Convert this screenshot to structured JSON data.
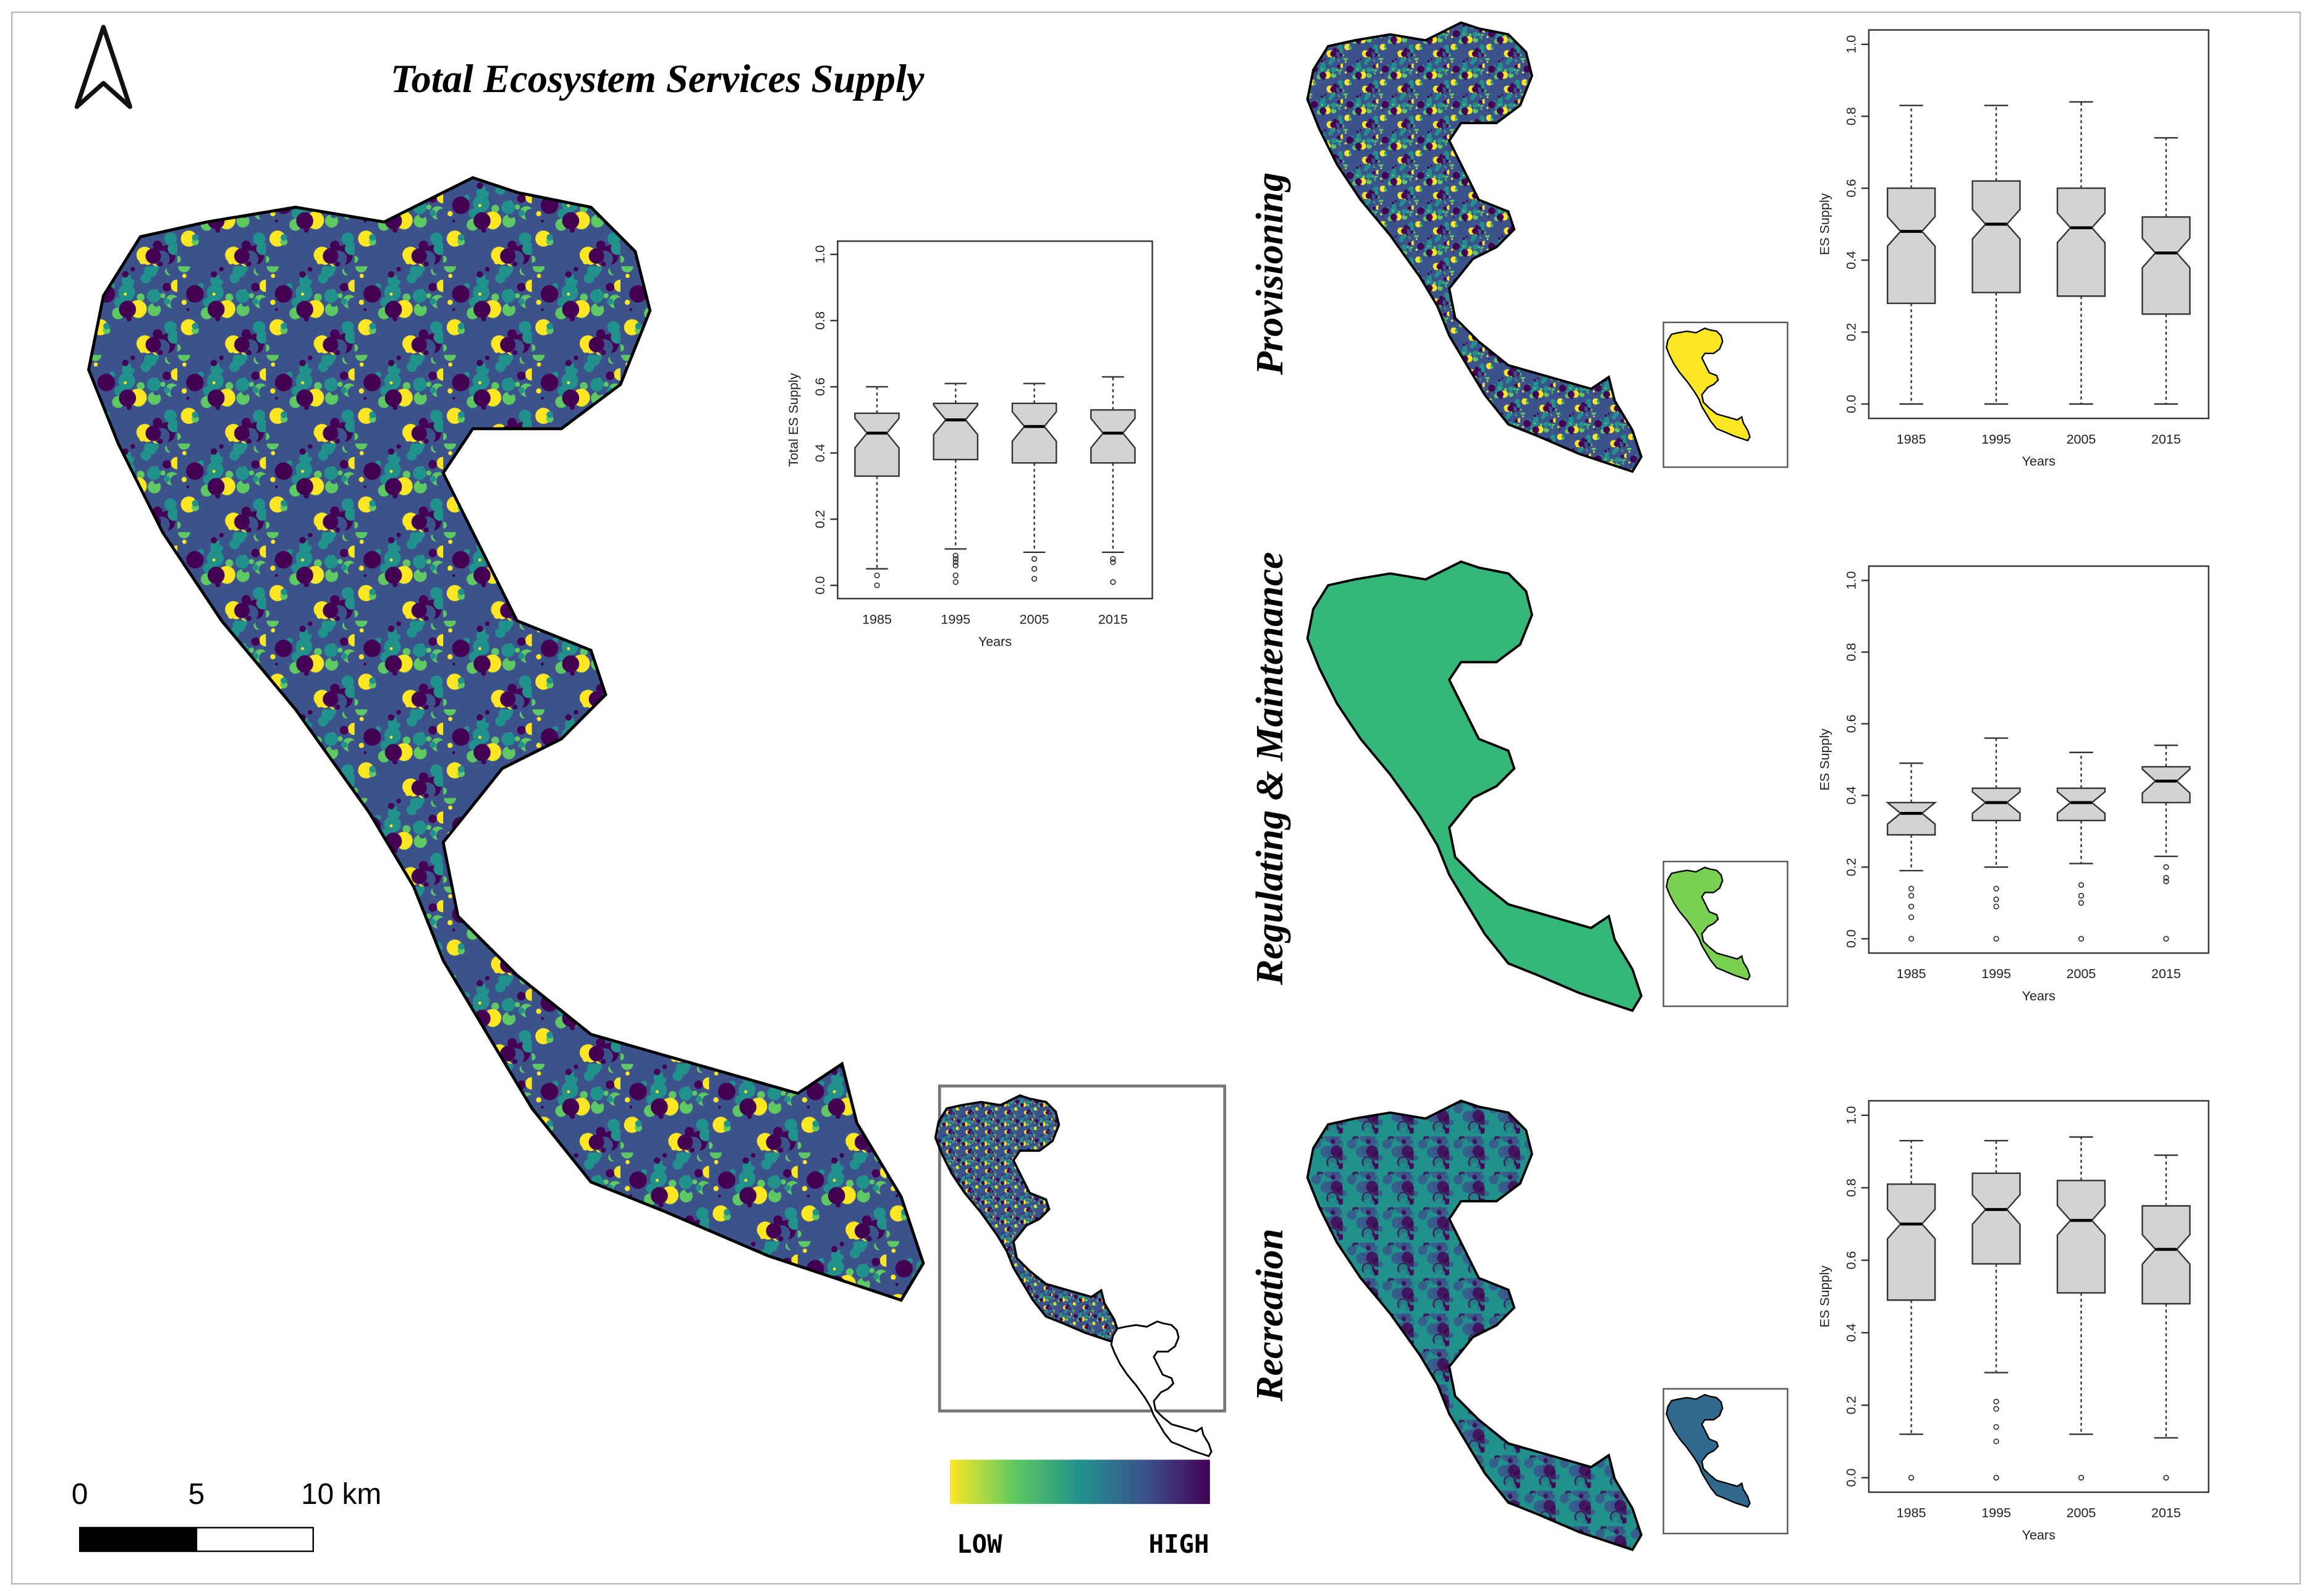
{
  "title": "Total Ecosystem Services Supply",
  "panel_labels": [
    "Provisioning",
    "Regulating & Maintenance",
    "Recreation"
  ],
  "scale_bar": {
    "labels": [
      "0",
      "5",
      "10 km"
    ]
  },
  "legend": {
    "low": "LOW",
    "high": "HIGH",
    "colors": [
      "#fde725",
      "#5ec962",
      "#21918c",
      "#3b528b",
      "#440154"
    ]
  },
  "chart_data": [
    {
      "type": "box",
      "y_label": "Total ES Supply",
      "x_label": "Years",
      "color": "#d3d3d3",
      "categories": [
        "1985",
        "1995",
        "2005",
        "2015"
      ],
      "stats": [
        {
          "min": 0.05,
          "q1": 0.33,
          "median": 0.46,
          "q3": 0.52,
          "max": 0.6,
          "outliers": [
            0.03,
            0
          ]
        },
        {
          "min": 0.11,
          "q1": 0.38,
          "median": 0.5,
          "q3": 0.55,
          "max": 0.61,
          "outliers": [
            0.09,
            0.08,
            0.07,
            0.06,
            0.03,
            0.01
          ]
        },
        {
          "min": 0.1,
          "q1": 0.37,
          "median": 0.48,
          "q3": 0.55,
          "max": 0.61,
          "outliers": [
            0.08,
            0.05,
            0.02
          ]
        },
        {
          "min": 0.1,
          "q1": 0.37,
          "median": 0.46,
          "q3": 0.53,
          "max": 0.63,
          "outliers": [
            0.08,
            0.07,
            0.01
          ]
        }
      ],
      "ylim": [
        -0.04,
        1.04
      ],
      "yticks": [
        {
          "value": 0,
          "label": "0.0"
        },
        {
          "value": 0.2,
          "label": "0.2"
        },
        {
          "value": 0.4,
          "label": "0.4"
        },
        {
          "value": 0.6,
          "label": "0.6"
        },
        {
          "value": 0.8,
          "label": "0.8"
        },
        {
          "value": 1,
          "label": "1.0"
        }
      ]
    },
    {
      "type": "box",
      "y_label": "ES Supply",
      "x_label": "Years",
      "color": "#d3d3d3",
      "categories": [
        "1985",
        "1995",
        "2005",
        "2015"
      ],
      "stats": [
        {
          "min": 0,
          "q1": 0.28,
          "median": 0.48,
          "q3": 0.6,
          "max": 0.83,
          "outliers": []
        },
        {
          "min": 0,
          "q1": 0.31,
          "median": 0.5,
          "q3": 0.62,
          "max": 0.83,
          "outliers": []
        },
        {
          "min": 0,
          "q1": 0.3,
          "median": 0.49,
          "q3": 0.6,
          "max": 0.84,
          "outliers": []
        },
        {
          "min": 0,
          "q1": 0.25,
          "median": 0.42,
          "q3": 0.52,
          "max": 0.74,
          "outliers": []
        }
      ],
      "ylim": [
        -0.04,
        1.04
      ],
      "yticks": [
        {
          "value": 0,
          "label": "0.0"
        },
        {
          "value": 0.2,
          "label": "0.2"
        },
        {
          "value": 0.4,
          "label": "0.4"
        },
        {
          "value": 0.6,
          "label": "0.6"
        },
        {
          "value": 0.8,
          "label": "0.8"
        },
        {
          "value": 1,
          "label": "1.0"
        }
      ]
    },
    {
      "type": "box",
      "y_label": "ES Supply",
      "x_label": "Years",
      "color": "#d3d3d3",
      "categories": [
        "1985",
        "1995",
        "2005",
        "2015"
      ],
      "stats": [
        {
          "min": 0.19,
          "q1": 0.29,
          "median": 0.35,
          "q3": 0.38,
          "max": 0.49,
          "outliers": [
            0.14,
            0.12,
            0.09,
            0.06,
            0
          ]
        },
        {
          "min": 0.2,
          "q1": 0.33,
          "median": 0.38,
          "q3": 0.42,
          "max": 0.56,
          "outliers": [
            0.14,
            0.11,
            0.09,
            0
          ]
        },
        {
          "min": 0.21,
          "q1": 0.33,
          "median": 0.38,
          "q3": 0.42,
          "max": 0.52,
          "outliers": [
            0.15,
            0.12,
            0.1,
            0
          ]
        },
        {
          "min": 0.23,
          "q1": 0.38,
          "median": 0.44,
          "q3": 0.48,
          "max": 0.54,
          "outliers": [
            0.2,
            0.17,
            0.16,
            0
          ]
        }
      ],
      "ylim": [
        -0.04,
        1.04
      ],
      "yticks": [
        {
          "value": 0,
          "label": "0.0"
        },
        {
          "value": 0.2,
          "label": "0.2"
        },
        {
          "value": 0.4,
          "label": "0.4"
        },
        {
          "value": 0.6,
          "label": "0.6"
        },
        {
          "value": 0.8,
          "label": "0.8"
        },
        {
          "value": 1,
          "label": "1.0"
        }
      ]
    },
    {
      "type": "box",
      "y_label": "ES Supply",
      "x_label": "Years",
      "color": "#d3d3d3",
      "categories": [
        "1985",
        "1995",
        "2005",
        "2015"
      ],
      "stats": [
        {
          "min": 0.12,
          "q1": 0.49,
          "median": 0.7,
          "q3": 0.81,
          "max": 0.93,
          "outliers": [
            0
          ]
        },
        {
          "min": 0.29,
          "q1": 0.59,
          "median": 0.74,
          "q3": 0.84,
          "max": 0.93,
          "outliers": [
            0.21,
            0.19,
            0.14,
            0.1,
            0
          ]
        },
        {
          "min": 0.12,
          "q1": 0.51,
          "median": 0.71,
          "q3": 0.82,
          "max": 0.94,
          "outliers": [
            0
          ]
        },
        {
          "min": 0.11,
          "q1": 0.48,
          "median": 0.63,
          "q3": 0.75,
          "max": 0.89,
          "outliers": [
            0
          ]
        }
      ],
      "ylim": [
        -0.04,
        1.04
      ],
      "yticks": [
        {
          "value": 0,
          "label": "0.0"
        },
        {
          "value": 0.2,
          "label": "0.2"
        },
        {
          "value": 0.4,
          "label": "0.4"
        },
        {
          "value": 0.6,
          "label": "0.6"
        },
        {
          "value": 0.8,
          "label": "0.8"
        },
        {
          "value": 1,
          "label": "1.0"
        }
      ]
    }
  ]
}
